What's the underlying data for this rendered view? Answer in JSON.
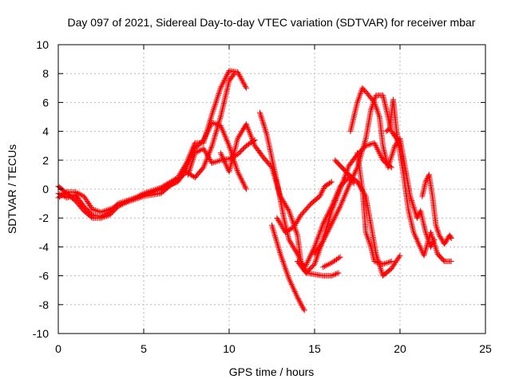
{
  "chart_data": {
    "type": "scatter",
    "title": "Day 097 of 2021, Sidereal Day-to-day VTEC variation (SDTVAR) for receiver mbar",
    "xlabel": "GPS time / hours",
    "ylabel": "SDTVAR / TECUs",
    "xlim": [
      0,
      25
    ],
    "ylim": [
      -10,
      10
    ],
    "xticks": [
      0,
      5,
      10,
      15,
      20,
      25
    ],
    "yticks": [
      -10,
      -8,
      -6,
      -4,
      -2,
      0,
      2,
      4,
      6,
      8,
      10
    ],
    "grid": true,
    "marker": "plus",
    "color": "#ff0000",
    "series": [
      {
        "values": [
          [
            0,
            -0.3
          ],
          [
            0.5,
            -0.6
          ],
          [
            1,
            -0.4
          ],
          [
            1.5,
            -1.2
          ],
          [
            2,
            -1.8
          ],
          [
            2.5,
            -1.9
          ],
          [
            3,
            -1.6
          ],
          [
            3.5,
            -1.0
          ],
          [
            4,
            -0.8
          ],
          [
            4.5,
            -0.6
          ],
          [
            5,
            -0.4
          ],
          [
            5.5,
            -0.2
          ],
          [
            6,
            0.0
          ],
          [
            6.5,
            0.3
          ],
          [
            7,
            0.5
          ],
          [
            7.5,
            1.5
          ],
          [
            8,
            2.8
          ],
          [
            8.5,
            3.4
          ],
          [
            9,
            4.6
          ],
          [
            9.5,
            4.4
          ],
          [
            10,
            3.0
          ],
          [
            10.5,
            1.2
          ],
          [
            11,
            0.0
          ]
        ]
      },
      {
        "values": [
          [
            0,
            0.2
          ],
          [
            0.5,
            -0.3
          ],
          [
            1,
            -0.8
          ],
          [
            1.5,
            -1.5
          ],
          [
            2,
            -2.0
          ],
          [
            2.5,
            -2.0
          ],
          [
            3,
            -1.8
          ],
          [
            3.5,
            -1.2
          ],
          [
            4,
            -0.9
          ],
          [
            5,
            -0.3
          ],
          [
            6,
            0.1
          ],
          [
            7,
            0.8
          ],
          [
            7.5,
            1.8
          ],
          [
            8,
            3.2
          ],
          [
            8.5,
            3.2
          ],
          [
            9,
            5.2
          ],
          [
            9.5,
            7.0
          ],
          [
            10,
            8.2
          ],
          [
            10.5,
            8.1
          ],
          [
            11,
            7.0
          ]
        ]
      },
      {
        "values": [
          [
            0,
            -0.6
          ],
          [
            0.5,
            -0.2
          ],
          [
            1,
            -0.2
          ],
          [
            1.5,
            -0.5
          ],
          [
            2,
            -1.4
          ],
          [
            2.5,
            -1.6
          ],
          [
            3,
            -1.4
          ],
          [
            4,
            -0.9
          ],
          [
            5,
            -0.5
          ],
          [
            6,
            -0.3
          ],
          [
            6.5,
            0.2
          ],
          [
            7,
            0.6
          ],
          [
            7.5,
            1.2
          ],
          [
            8,
            0.8
          ],
          [
            8.5,
            1.5
          ],
          [
            9,
            3.0
          ],
          [
            9.5,
            5.0
          ],
          [
            10,
            7.5
          ],
          [
            10.3,
            8.0
          ]
        ]
      },
      {
        "values": [
          [
            7.6,
            1.0
          ],
          [
            8,
            2.5
          ],
          [
            8.5,
            2.8
          ],
          [
            9,
            1.8
          ],
          [
            9.5,
            2.0
          ],
          [
            10,
            2.1
          ],
          [
            10.5,
            2.4
          ],
          [
            11,
            3.0
          ],
          [
            11.5,
            3.4
          ]
        ]
      },
      {
        "values": [
          [
            9.5,
            2.5
          ],
          [
            10,
            1.2
          ],
          [
            10.5,
            3.5
          ],
          [
            11,
            4.5
          ],
          [
            11.5,
            3.0
          ],
          [
            12,
            2.2
          ],
          [
            12.5,
            1.5
          ],
          [
            13,
            -0.5
          ],
          [
            13.5,
            -1.5
          ],
          [
            14,
            -3.2
          ],
          [
            14.2,
            -5.0
          ],
          [
            14.4,
            -5.5
          ],
          [
            15,
            -4.0
          ],
          [
            15.5,
            -2.4
          ],
          [
            16,
            -1.2
          ],
          [
            16.5,
            0.2
          ],
          [
            17,
            0.8
          ],
          [
            17.3,
            0.4
          ]
        ]
      },
      {
        "values": [
          [
            11.8,
            5.3
          ],
          [
            12.2,
            3.8
          ],
          [
            12.8,
            0.5
          ],
          [
            13.2,
            -2.0
          ],
          [
            13.5,
            -3.5
          ],
          [
            14,
            -4.5
          ],
          [
            14.5,
            -5.8
          ],
          [
            15,
            -5.2
          ],
          [
            15.5,
            -3.5
          ],
          [
            16,
            -1.5
          ],
          [
            16.5,
            0.0
          ],
          [
            17,
            1.6
          ],
          [
            17.5,
            2.4
          ],
          [
            18,
            3.0
          ],
          [
            18.5,
            3.2
          ],
          [
            19,
            2.0
          ],
          [
            19.5,
            1.5
          ]
        ]
      },
      {
        "values": [
          [
            12.5,
            -2.5
          ],
          [
            13,
            -4.5
          ],
          [
            13.5,
            -6.2
          ],
          [
            14,
            -7.5
          ],
          [
            14.4,
            -8.4
          ]
        ]
      },
      {
        "values": [
          [
            12.8,
            -2.0
          ],
          [
            13.3,
            -3.0
          ],
          [
            13.8,
            -2.6
          ],
          [
            14.2,
            -1.8
          ],
          [
            14.8,
            -1.0
          ],
          [
            15.3,
            -0.5
          ],
          [
            15.6,
            0.2
          ],
          [
            16,
            0.5
          ]
        ]
      },
      {
        "values": [
          [
            14,
            -5.0
          ],
          [
            14.5,
            -5.8
          ],
          [
            15,
            -5.9
          ],
          [
            15.5,
            -6.0
          ],
          [
            16,
            -6.0
          ],
          [
            16.4,
            -5.8
          ]
        ]
      },
      {
        "values": [
          [
            15.5,
            -5.4
          ],
          [
            16,
            -5.1
          ],
          [
            16.5,
            -4.7
          ]
        ]
      },
      {
        "values": [
          [
            15,
            -4.5
          ],
          [
            15.5,
            -3.6
          ],
          [
            16,
            -2.4
          ],
          [
            16.5,
            -1.2
          ],
          [
            17,
            0.2
          ],
          [
            17.5,
            1.5
          ],
          [
            18,
            3.5
          ],
          [
            18.3,
            5.5
          ],
          [
            18.6,
            6.5
          ],
          [
            19,
            6.5
          ],
          [
            19.2,
            5.5
          ],
          [
            19.5,
            4.0
          ],
          [
            19.8,
            3.5
          ],
          [
            20,
            3.0
          ]
        ]
      },
      {
        "values": [
          [
            16.2,
            2.0
          ],
          [
            16.6,
            1.5
          ],
          [
            17,
            1.0
          ],
          [
            17.5,
            0.5
          ],
          [
            18,
            -0.5
          ],
          [
            18.3,
            -2.5
          ],
          [
            18.6,
            -4.5
          ],
          [
            19,
            -6.0
          ],
          [
            19.5,
            -5.5
          ],
          [
            20,
            -4.6
          ]
        ]
      },
      {
        "values": [
          [
            17.5,
            2.5
          ],
          [
            17.8,
            0.0
          ],
          [
            18,
            -3.0
          ],
          [
            18.3,
            -4.0
          ],
          [
            18.5,
            -5.0
          ],
          [
            19,
            -5.2
          ],
          [
            19.5,
            -5.0
          ]
        ]
      },
      {
        "values": [
          [
            17.1,
            4.0
          ],
          [
            17.5,
            6.0
          ],
          [
            17.8,
            7.0
          ],
          [
            18.1,
            6.6
          ],
          [
            18.5,
            6.0
          ],
          [
            18.8,
            5.0
          ],
          [
            19,
            3.0
          ],
          [
            19.3,
            1.5
          ],
          [
            19.7,
            3.0
          ],
          [
            20,
            3.5
          ],
          [
            20.3,
            1.5
          ],
          [
            20.6,
            -0.5
          ],
          [
            21,
            -2.0
          ],
          [
            21.2,
            -1.5
          ],
          [
            21.5,
            -3.0
          ],
          [
            21.8,
            -4.0
          ],
          [
            22,
            -3.5
          ]
        ]
      },
      {
        "values": [
          [
            19.2,
            4.0
          ],
          [
            19.4,
            4.2
          ],
          [
            19.6,
            6.2
          ],
          [
            19.8,
            4.0
          ],
          [
            20,
            2.5
          ],
          [
            20.2,
            1.0
          ],
          [
            20.5,
            -1.5
          ],
          [
            20.8,
            -3.0
          ],
          [
            21.1,
            -3.8
          ],
          [
            21.4,
            -4.6
          ],
          [
            21.8,
            -3.0
          ],
          [
            22.2,
            -4.5
          ],
          [
            22.6,
            -5.0
          ],
          [
            23,
            -5.0
          ]
        ]
      },
      {
        "values": [
          [
            21.3,
            -0.5
          ],
          [
            21.5,
            0.5
          ],
          [
            21.7,
            1.0
          ],
          [
            21.9,
            -0.5
          ],
          [
            22.1,
            -2.5
          ],
          [
            22.3,
            -3.2
          ],
          [
            22.6,
            -3.8
          ],
          [
            22.9,
            -3.2
          ],
          [
            23,
            -3.4
          ]
        ]
      }
    ]
  }
}
